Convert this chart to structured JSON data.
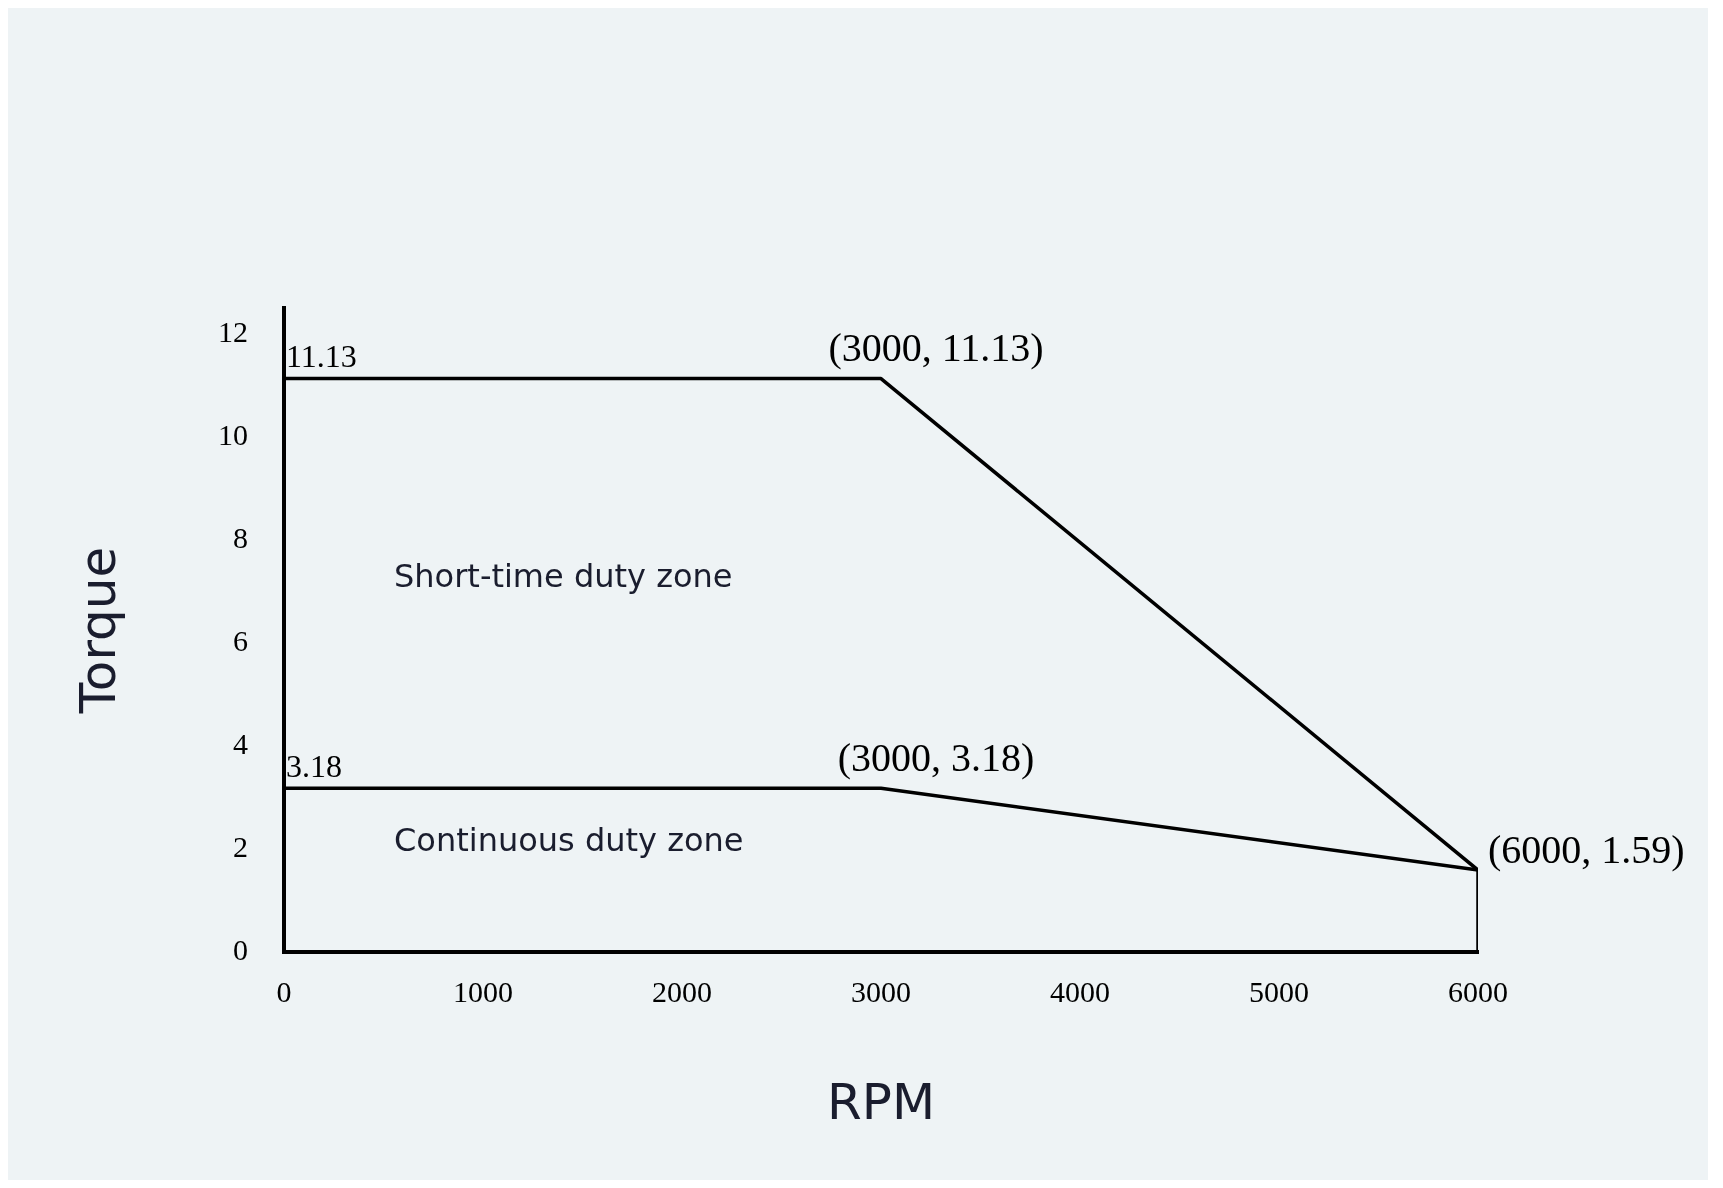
{
  "chart_data": {
    "type": "line",
    "xlabel": "RPM",
    "ylabel": "Torque",
    "series": [
      {
        "color": "#000000",
        "x": [
          0,
          3000,
          6000,
          6000
        ],
        "values": [
          11.13,
          11.13,
          1.59,
          0
        ]
      },
      {
        "color": "#000000",
        "x": [
          0,
          3000,
          6000
        ],
        "values": [
          3.18,
          3.18,
          1.59
        ]
      }
    ],
    "xlim": [
      0,
      6000
    ],
    "xticks": [
      0,
      1000,
      2000,
      3000,
      4000,
      5000,
      6000
    ],
    "ylim": [
      0,
      12.5
    ],
    "yticks": [
      0,
      2,
      4,
      6,
      8,
      10,
      12
    ],
    "grid": false,
    "legend": false,
    "marker": "none",
    "line_style": "solid",
    "annotations": [
      {
        "text": "11.13",
        "x": 0,
        "y": 11.13
      },
      {
        "text": "(3000, 11.13)",
        "x": 3000,
        "y": 11.13
      },
      {
        "text": "3.18",
        "x": 0,
        "y": 3.18
      },
      {
        "text": "(3000, 3.18)",
        "x": 3000,
        "y": 3.18
      },
      {
        "text": "(6000, 1.59)",
        "x": 6000,
        "y": 1.59
      },
      "Short-time duty zone",
      "Continuous duty zone"
    ]
  }
}
